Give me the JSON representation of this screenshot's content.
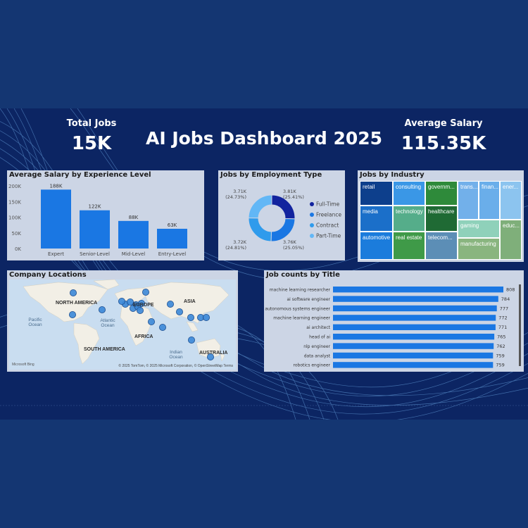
{
  "dashboard": {
    "title": "AI Jobs Dashboard 2025",
    "kpis": {
      "total_jobs_label": "Total Jobs",
      "total_jobs_value": "15K",
      "avg_salary_label": "Average Salary",
      "avg_salary_value": "115.35K"
    }
  },
  "chart_data": [
    {
      "type": "bar",
      "title": "Average Salary by Experience Level",
      "categories": [
        "Expert",
        "Senior-Level",
        "Mid-Level",
        "Entry-Level"
      ],
      "values": [
        188000,
        122000,
        88000,
        63000
      ],
      "data_labels": [
        "188K",
        "122K",
        "88K",
        "63K"
      ],
      "y_ticks": [
        "0K",
        "50K",
        "100K",
        "150K",
        "200K"
      ],
      "ylim": [
        0,
        200000
      ],
      "color": "#1a77e3"
    },
    {
      "type": "pie",
      "title": "Jobs by Employment Type",
      "donut": true,
      "categories": [
        "Full-Time",
        "Freelance",
        "Contract",
        "Part-Time"
      ],
      "values": [
        3810,
        3760,
        3720,
        3710
      ],
      "value_labels": [
        "3.81K",
        "3.76K",
        "3.72K",
        "3.71K"
      ],
      "percent_labels": [
        "(25.41%)",
        "(25.05%)",
        "(24.81%)",
        "(24.73%)"
      ],
      "colors": [
        "#12239e",
        "#1a77e3",
        "#2f9bec",
        "#62b7f6"
      ],
      "legend": "right"
    },
    {
      "type": "treemap",
      "title": "Jobs by Industry",
      "categories": [
        "retail",
        "consulting",
        "governm...",
        "trans...",
        "finan...",
        "ener...",
        "media",
        "technology",
        "healthcare",
        "gaming",
        "educ...",
        "automotive",
        "real estate",
        "telecom...",
        "manufacturing"
      ],
      "colors": {
        "retail": "#0d3f8c",
        "consulting": "#3a97e6",
        "governm...": "#2e8a3a",
        "trans...": "#72b0ea",
        "finan...": "#6aaeea",
        "ener...": "#8cc4ef",
        "media": "#1b6fc9",
        "technology": "#55ad8a",
        "healthcare": "#1f6a34",
        "gaming": "#8fd1ba",
        "educ...": "#7faf7a",
        "automotive": "#1b7cdc",
        "real estate": "#3f9a48",
        "telecom...": "#5c8eb6",
        "manufacturing": "#89b57f"
      }
    },
    {
      "type": "bar",
      "orientation": "horizontal",
      "title": "Job counts by Title",
      "categories": [
        "machine learning researcher",
        "ai software engineer",
        "autonomous systems engineer",
        "machine learning engineer",
        "ai architect",
        "head of ai",
        "nlp engineer",
        "data analyst",
        "robotics engineer"
      ],
      "values": [
        808,
        784,
        777,
        772,
        771,
        765,
        762,
        759,
        759
      ],
      "data_labels": [
        "808",
        "784",
        "777",
        "772",
        "771",
        "765",
        "762",
        "759",
        "759"
      ],
      "color": "#1a77e3"
    }
  ],
  "map": {
    "title": "Company Locations",
    "region_labels": [
      "NORTH AMERICA",
      "EUROPE",
      "ASIA",
      "AFRICA",
      "SOUTH AMERICA",
      "AUSTRALIA"
    ],
    "ocean_labels": [
      "Pacific Ocean",
      "Atlantic Ocean",
      "Indian Ocean"
    ],
    "copyright": "© 2025 TomTom, © 2025 Microsoft Corporation, © OpenStreetMap  Terms",
    "provider": "Microsoft Bing",
    "marker_color": "#3b87d7"
  }
}
